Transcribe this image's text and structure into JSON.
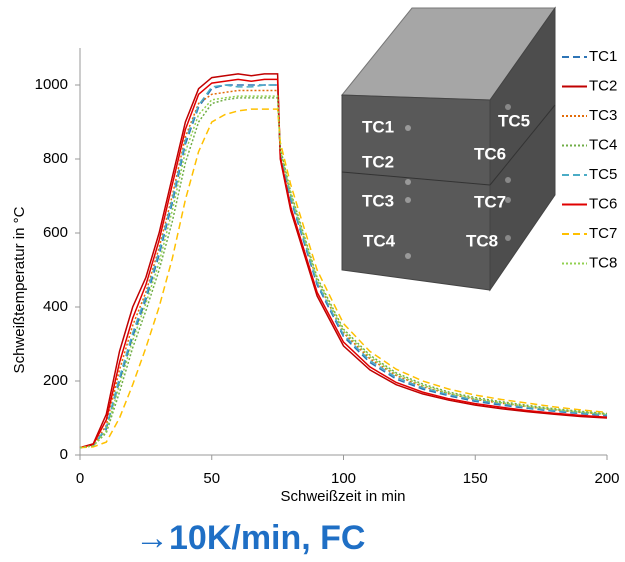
{
  "chart_data": {
    "type": "line",
    "xlabel": "Schweißzeit in min",
    "ylabel": "Schweißtemperatur in °C",
    "caption": "→10K/min, FC",
    "annotations": [
      "TC1",
      "TC5",
      "TC2",
      "TC6",
      "TC3",
      "TC7",
      "TC4",
      "TC8"
    ],
    "xlim": [
      0,
      200
    ],
    "xticks": [
      0,
      50,
      100,
      150,
      200
    ],
    "ylim": [
      0,
      1100
    ],
    "yticks": [
      0,
      200,
      400,
      600,
      800,
      1000
    ],
    "grid": false,
    "legend": "right",
    "x": [
      0,
      5,
      10,
      15,
      20,
      25,
      30,
      35,
      40,
      45,
      50,
      55,
      60,
      65,
      70,
      75,
      76,
      80,
      90,
      100,
      110,
      120,
      130,
      140,
      150,
      160,
      170,
      180,
      190,
      200
    ],
    "series": [
      {
        "name": "TC1",
        "color": "#2e75b6",
        "dash": "dashed",
        "values": [
          20,
          25,
          70,
          200,
          320,
          420,
          540,
          680,
          840,
          940,
          990,
          1000,
          1000,
          1000,
          1000,
          1000,
          810,
          690,
          460,
          320,
          250,
          205,
          178,
          160,
          145,
          135,
          126,
          118,
          112,
          106
        ]
      },
      {
        "name": "TC2",
        "color": "#c00000",
        "dash": "solid",
        "values": [
          20,
          30,
          110,
          280,
          400,
          480,
          600,
          750,
          900,
          990,
          1020,
          1025,
          1030,
          1025,
          1030,
          1030,
          800,
          660,
          430,
          295,
          230,
          190,
          165,
          148,
          135,
          125,
          117,
          110,
          104,
          100
        ]
      },
      {
        "name": "TC3",
        "color": "#e36c09",
        "dash": "dotted",
        "values": [
          20,
          25,
          80,
          230,
          350,
          440,
          560,
          700,
          860,
          950,
          975,
          980,
          985,
          985,
          985,
          985,
          820,
          700,
          470,
          330,
          260,
          215,
          185,
          165,
          150,
          140,
          130,
          122,
          115,
          110
        ]
      },
      {
        "name": "TC4",
        "color": "#70ad47",
        "dash": "dotted",
        "values": [
          20,
          25,
          60,
          170,
          290,
          390,
          500,
          630,
          790,
          900,
          950,
          960,
          965,
          965,
          965,
          965,
          830,
          710,
          480,
          340,
          270,
          222,
          192,
          170,
          155,
          144,
          134,
          125,
          118,
          112
        ]
      },
      {
        "name": "TC5",
        "color": "#4bacc6",
        "dash": "dashed",
        "values": [
          20,
          25,
          75,
          210,
          330,
          430,
          550,
          690,
          850,
          945,
          995,
          1000,
          995,
          995,
          1000,
          1000,
          815,
          695,
          465,
          325,
          255,
          210,
          182,
          163,
          148,
          138,
          128,
          120,
          114,
          108
        ]
      },
      {
        "name": "TC6",
        "color": "#e00000",
        "dash": "solid",
        "values": [
          20,
          28,
          95,
          250,
          370,
          460,
          580,
          730,
          880,
          975,
          1005,
          1010,
          1015,
          1010,
          1015,
          1015,
          805,
          670,
          440,
          305,
          238,
          196,
          170,
          152,
          139,
          129,
          120,
          113,
          107,
          102
        ]
      },
      {
        "name": "TC7",
        "color": "#ffc000",
        "dash": "dashed",
        "values": [
          20,
          22,
          35,
          100,
          190,
          290,
          400,
          530,
          690,
          820,
          900,
          920,
          930,
          935,
          935,
          935,
          845,
          730,
          500,
          355,
          280,
          232,
          200,
          178,
          162,
          150,
          140,
          130,
          122,
          115
        ]
      },
      {
        "name": "TC8",
        "color": "#92d050",
        "dash": "dotted",
        "values": [
          20,
          25,
          65,
          190,
          310,
          410,
          520,
          660,
          820,
          920,
          960,
          965,
          970,
          970,
          970,
          970,
          825,
          705,
          475,
          335,
          265,
          218,
          188,
          167,
          152,
          141,
          131,
          123,
          116,
          110
        ]
      }
    ]
  }
}
